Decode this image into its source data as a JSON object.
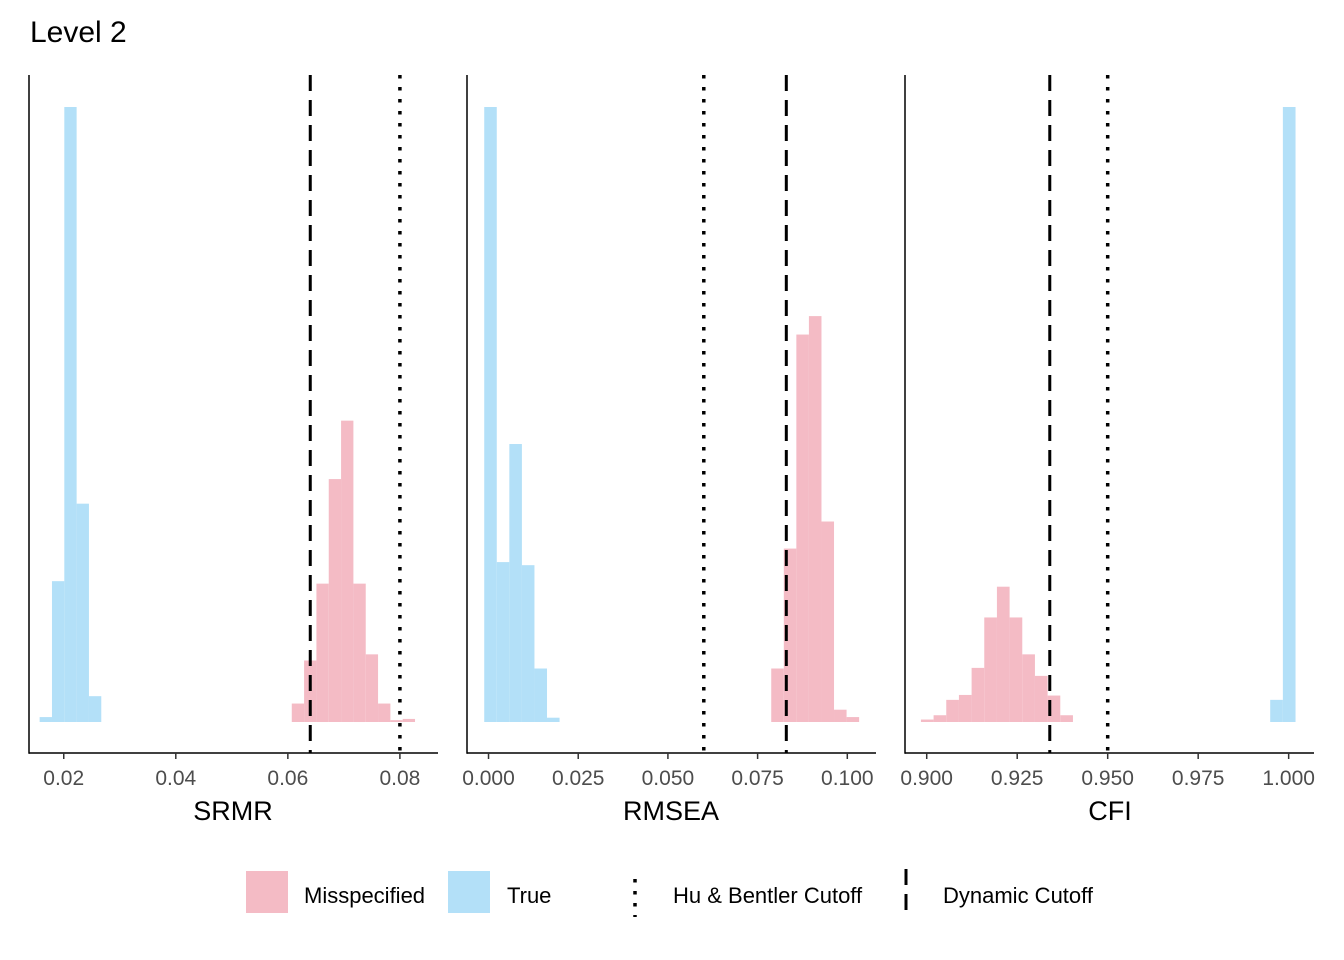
{
  "title": "Level 2",
  "colors": {
    "misspecified": "#f4bbc5",
    "true": "#b3e0f8",
    "cutoff_line": "#000000"
  },
  "legend": {
    "misspecified_label": "Misspecified",
    "true_label": "True",
    "hu_bentler_label": "Hu & Bentler Cutoff",
    "dynamic_label": "Dynamic Cutoff"
  },
  "chart_data": [
    {
      "type": "histogram",
      "xlabel": "SRMR",
      "xlim": [
        0.0138,
        0.0868
      ],
      "ylim": [
        0,
        1.0
      ],
      "ticks": [
        0.02,
        0.04,
        0.06,
        0.08
      ],
      "tick_labels": [
        "0.02",
        "0.04",
        "0.06",
        "0.08"
      ],
      "cutoffs": {
        "hu_bentler": 0.08,
        "dynamic": 0.064
      },
      "series": [
        {
          "name": "True",
          "bins": [
            [
              0.0157,
              0.0179,
              0.008
            ],
            [
              0.0179,
              0.0201,
              0.229
            ],
            [
              0.0201,
              0.0223,
              1.0
            ],
            [
              0.0223,
              0.0245,
              0.355
            ],
            [
              0.0245,
              0.0267,
              0.042
            ]
          ]
        },
        {
          "name": "Misspecified",
          "bins": [
            [
              0.0607,
              0.0629,
              0.03
            ],
            [
              0.0629,
              0.0651,
              0.1
            ],
            [
              0.0651,
              0.0673,
              0.225
            ],
            [
              0.0673,
              0.0695,
              0.395
            ],
            [
              0.0695,
              0.0717,
              0.49
            ],
            [
              0.0717,
              0.0739,
              0.225
            ],
            [
              0.0739,
              0.0761,
              0.11
            ],
            [
              0.0761,
              0.0783,
              0.03
            ],
            [
              0.0783,
              0.0805,
              0.003
            ],
            [
              0.0805,
              0.0827,
              0.005
            ]
          ]
        }
      ]
    },
    {
      "type": "histogram",
      "xlabel": "RMSEA",
      "xlim": [
        -0.006,
        0.108
      ],
      "ylim": [
        0,
        1.0
      ],
      "ticks": [
        0,
        0.025,
        0.05,
        0.075,
        0.1
      ],
      "tick_labels": [
        "0.000",
        "0.025",
        "0.050",
        "0.075",
        "0.100"
      ],
      "cutoffs": {
        "hu_bentler": 0.06,
        "dynamic": 0.083
      },
      "series": [
        {
          "name": "True",
          "bins": [
            [
              -0.0012,
              0.0023,
              1.0
            ],
            [
              0.0023,
              0.0058,
              0.26
            ],
            [
              0.0058,
              0.0093,
              0.452
            ],
            [
              0.0093,
              0.0128,
              0.255
            ],
            [
              0.0128,
              0.0163,
              0.087
            ],
            [
              0.0163,
              0.0198,
              0.007
            ]
          ]
        },
        {
          "name": "Misspecified",
          "bins": [
            [
              0.0788,
              0.0823,
              0.087
            ],
            [
              0.0823,
              0.0858,
              0.282
            ],
            [
              0.0858,
              0.0893,
              0.63
            ],
            [
              0.0893,
              0.0928,
              0.66
            ],
            [
              0.0928,
              0.0963,
              0.326
            ],
            [
              0.0963,
              0.0998,
              0.02
            ],
            [
              0.0998,
              0.1033,
              0.008
            ]
          ]
        }
      ]
    },
    {
      "type": "histogram",
      "xlabel": "CFI",
      "xlim": [
        0.894,
        1.007
      ],
      "ylim": [
        0,
        1.0
      ],
      "ticks": [
        0.9,
        0.925,
        0.95,
        0.975,
        1.0
      ],
      "tick_labels": [
        "0.900",
        "0.925",
        "0.950",
        "0.975",
        "1.000"
      ],
      "cutoffs": {
        "hu_bentler": 0.95,
        "dynamic": 0.934
      },
      "series": [
        {
          "name": "True",
          "bins": [
            [
              0.9949,
              0.9984,
              0.036
            ],
            [
              0.9984,
              1.0019,
              1.0
            ]
          ]
        },
        {
          "name": "Misspecified",
          "bins": [
            [
              0.8984,
              0.9019,
              0.004
            ],
            [
              0.9019,
              0.9054,
              0.011
            ],
            [
              0.9054,
              0.9089,
              0.036
            ],
            [
              0.9089,
              0.9124,
              0.044
            ],
            [
              0.9124,
              0.9159,
              0.088
            ],
            [
              0.9159,
              0.9194,
              0.17
            ],
            [
              0.9194,
              0.9229,
              0.22
            ],
            [
              0.9229,
              0.9264,
              0.17
            ],
            [
              0.9264,
              0.9299,
              0.11
            ],
            [
              0.9299,
              0.9334,
              0.075
            ],
            [
              0.9334,
              0.9369,
              0.043
            ],
            [
              0.9369,
              0.9404,
              0.011
            ]
          ]
        }
      ]
    }
  ]
}
